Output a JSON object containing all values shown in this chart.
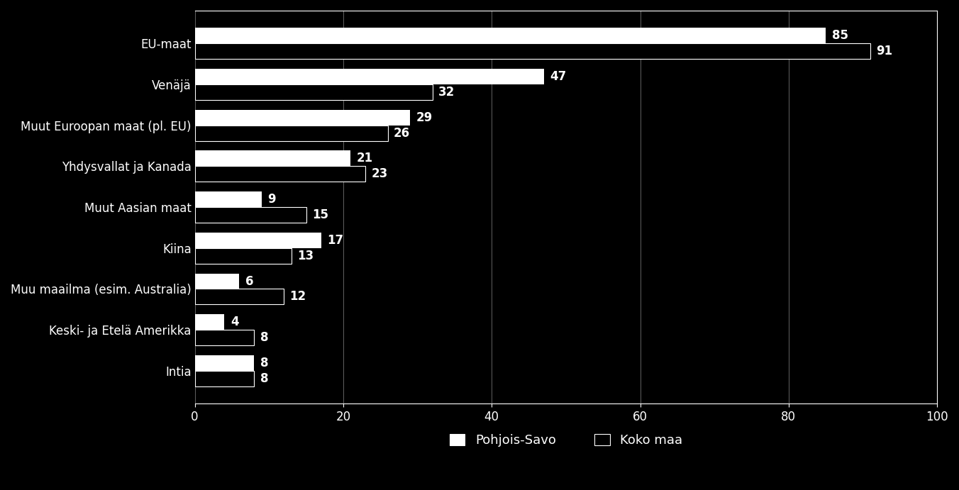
{
  "categories": [
    "EU-maat",
    "Venäjä",
    "Muut Euroopan maat (pl. EU)",
    "Yhdysvallat ja Kanada",
    "Muut Aasian maat",
    "Kiina",
    "Muu maailma (esim. Australia)",
    "Keski- ja Etelä Amerikka",
    "Intia"
  ],
  "pohjois_savo": [
    85,
    47,
    29,
    21,
    9,
    17,
    6,
    4,
    8
  ],
  "koko_maa": [
    91,
    32,
    26,
    23,
    15,
    13,
    12,
    8,
    8
  ],
  "color_pohjois_savo": "#ffffff",
  "color_koko_maa": "#000000",
  "background_color": "#000000",
  "text_color": "#ffffff",
  "bar_height": 0.38,
  "xlim": [
    0,
    100
  ],
  "legend_labels": [
    "Pohjois-Savo",
    "Koko maa"
  ],
  "xticks": [
    0,
    20,
    40,
    60,
    80,
    100
  ]
}
